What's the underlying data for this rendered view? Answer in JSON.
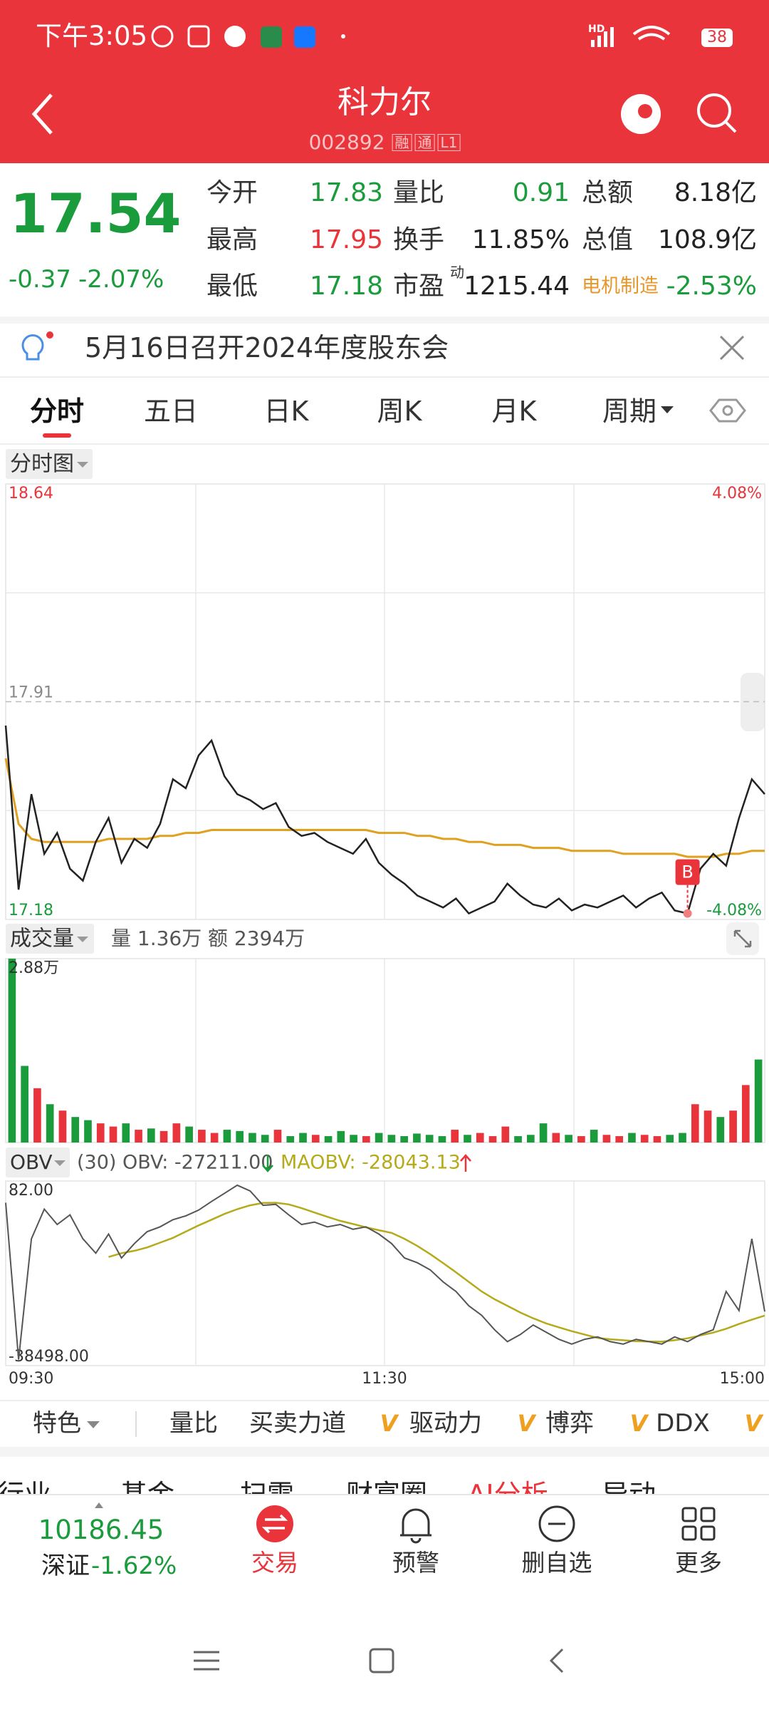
{
  "status_bar": {
    "time": "下午3:05",
    "network": "HD",
    "battery": "38"
  },
  "header": {
    "title": "科力尔",
    "code": "002892",
    "badges": [
      "融",
      "通",
      "L1"
    ]
  },
  "quote": {
    "price": "17.54",
    "change": "-0.37",
    "change_pct": "-2.07%",
    "fields": [
      {
        "label": "今开",
        "value": "17.83",
        "value_color": "#1a9b3c"
      },
      {
        "label": "量比",
        "value": "0.91",
        "value_color": "#1a9b3c"
      },
      {
        "label": "总额",
        "value": "8.18亿",
        "value_color": "#222222"
      },
      {
        "label": "最高",
        "value": "17.95",
        "value_color": "#e8343a"
      },
      {
        "label": "换手",
        "value": "11.85%",
        "value_color": "#222222"
      },
      {
        "label": "总值",
        "value": "108.9亿",
        "value_color": "#222222"
      },
      {
        "label": "最低",
        "value": "17.18",
        "value_color": "#1a9b3c"
      },
      {
        "label": "市盈",
        "sup": "动",
        "value": "1215.44",
        "value_color": "#222222"
      },
      {
        "label": "电机制造",
        "label_color": "#e8962a",
        "value": "-2.53%",
        "value_color": "#1a9b3c"
      }
    ]
  },
  "notice": {
    "text": "5月16日召开2024年度股东会"
  },
  "tabs": {
    "items": [
      "分时",
      "五日",
      "日K",
      "周K",
      "月K",
      "周期"
    ],
    "selected": 0
  },
  "intraday": {
    "label": "分时图",
    "prev_close": 17.91,
    "ylim": [
      17.18,
      18.64
    ],
    "pct_top": "4.08%",
    "pct_bottom": "-4.08%",
    "signal": "B",
    "price": {
      "color": "#222222",
      "values": [
        17.83,
        17.28,
        17.6,
        17.4,
        17.47,
        17.35,
        17.31,
        17.44,
        17.52,
        17.37,
        17.45,
        17.42,
        17.5,
        17.65,
        17.62,
        17.73,
        17.78,
        17.66,
        17.6,
        17.58,
        17.55,
        17.57,
        17.49,
        17.46,
        17.47,
        17.44,
        17.42,
        17.4,
        17.45,
        17.37,
        17.33,
        17.3,
        17.26,
        17.24,
        17.22,
        17.25,
        17.2,
        17.22,
        17.24,
        17.3,
        17.26,
        17.23,
        17.22,
        17.25,
        17.21,
        17.23,
        17.22,
        17.24,
        17.26,
        17.22,
        17.25,
        17.27,
        17.21,
        17.2,
        17.35,
        17.4,
        17.36,
        17.52,
        17.65,
        17.6
      ]
    },
    "avg": {
      "color": "#e0a020",
      "values": [
        17.72,
        17.5,
        17.45,
        17.44,
        17.44,
        17.44,
        17.44,
        17.44,
        17.45,
        17.45,
        17.45,
        17.45,
        17.46,
        17.46,
        17.47,
        17.47,
        17.48,
        17.48,
        17.48,
        17.48,
        17.48,
        17.48,
        17.48,
        17.48,
        17.48,
        17.48,
        17.48,
        17.48,
        17.48,
        17.47,
        17.47,
        17.47,
        17.46,
        17.46,
        17.45,
        17.45,
        17.44,
        17.44,
        17.43,
        17.43,
        17.43,
        17.42,
        17.42,
        17.42,
        17.41,
        17.41,
        17.41,
        17.41,
        17.4,
        17.4,
        17.4,
        17.4,
        17.4,
        17.39,
        17.39,
        17.39,
        17.4,
        17.4,
        17.41,
        17.41
      ]
    },
    "times": [
      "09:30",
      "11:30",
      "15:00"
    ]
  },
  "volume": {
    "label": "成交量",
    "volume_text": "量 1.36万",
    "turnover_text": "额 2394万",
    "ylim": [
      0,
      2.88
    ],
    "max_label": "2.88万",
    "up_color": "#e8343a",
    "down_color": "#1a9b3c",
    "values": [
      2.88,
      1.2,
      0.85,
      0.6,
      0.5,
      0.4,
      0.35,
      0.3,
      0.25,
      0.3,
      0.2,
      0.22,
      0.18,
      0.3,
      0.25,
      0.2,
      0.15,
      0.2,
      0.18,
      0.15,
      0.12,
      0.2,
      0.1,
      0.15,
      0.12,
      0.1,
      0.18,
      0.12,
      0.1,
      0.15,
      0.12,
      0.1,
      0.14,
      0.12,
      0.1,
      0.2,
      0.12,
      0.15,
      0.1,
      0.25,
      0.1,
      0.12,
      0.3,
      0.15,
      0.12,
      0.1,
      0.2,
      0.12,
      0.1,
      0.15,
      0.12,
      0.1,
      0.12,
      0.15,
      0.6,
      0.5,
      0.4,
      0.5,
      0.9,
      1.3
    ]
  },
  "obv": {
    "label": "OBV",
    "obv_text": "(30) OBV: -27211.00",
    "maobv_text": "MAOBV: -28043.13",
    "ylim": [
      -38498,
      82
    ],
    "yticks": [
      {
        "value": -38498,
        "label": "-38498.00"
      },
      {
        "value": 82,
        "label": "82.00"
      }
    ],
    "obv": {
      "color": "#555555",
      "values": [
        -4457,
        -37237,
        -12000,
        -5800,
        -9000,
        -7000,
        -12000,
        -15000,
        -11000,
        -16000,
        -13000,
        -10500,
        -9500,
        -8000,
        -7200,
        -6000,
        -4200,
        -2500,
        -800,
        -2000,
        -5000,
        -4800,
        -7000,
        -9000,
        -8500,
        -9500,
        -9000,
        -10000,
        -9500,
        -11000,
        -13000,
        -16000,
        -17000,
        -18500,
        -21000,
        -23000,
        -26000,
        -28000,
        -31000,
        -33500,
        -32000,
        -30000,
        -31500,
        -33000,
        -34000,
        -33000,
        -32500,
        -33500,
        -34000,
        -33000,
        -33500,
        -34000,
        -32500,
        -33500,
        -32000,
        -31000,
        -23000,
        -27000,
        -12000,
        -27211
      ]
    },
    "maobv": {
      "color": "#b5aa1a",
      "values": [
        null,
        null,
        null,
        null,
        null,
        null,
        null,
        null,
        -15800,
        -15000,
        -14500,
        -13800,
        -12800,
        -11800,
        -10500,
        -9200,
        -8000,
        -6800,
        -5800,
        -5000,
        -4500,
        -4457,
        -4800,
        -5600,
        -6500,
        -7400,
        -8240,
        -8900,
        -9600,
        -10200,
        -10760,
        -12000,
        -13500,
        -15200,
        -17065,
        -19000,
        -21000,
        -23000,
        -24630,
        -26000,
        -27400,
        -28600,
        -29670,
        -30500,
        -31300,
        -32000,
        -32700,
        -33000,
        -33200,
        -33400,
        -33456,
        -33500,
        -33200,
        -32800,
        -32200,
        -31600,
        -30800,
        -29800,
        -28900,
        -28043
      ]
    }
  },
  "toolbar": {
    "items": [
      {
        "label": "特色"
      },
      {
        "label": "量比"
      },
      {
        "label": "买卖力道"
      },
      {
        "badge": "V",
        "label": "驱动力"
      },
      {
        "badge": "V",
        "label": "博弈"
      },
      {
        "badge": "V",
        "label": "DDX"
      },
      {
        "badge": "V"
      }
    ]
  },
  "sub_tabs": [
    "行业",
    "基金",
    "扫雷",
    "财富圈",
    "AI分析",
    "异动"
  ],
  "bottom_nav": {
    "index_value": "10186.45",
    "index_name": "深证",
    "index_change": "-1.62%",
    "items": [
      "交易",
      "预警",
      "删自选",
      "更多"
    ]
  }
}
